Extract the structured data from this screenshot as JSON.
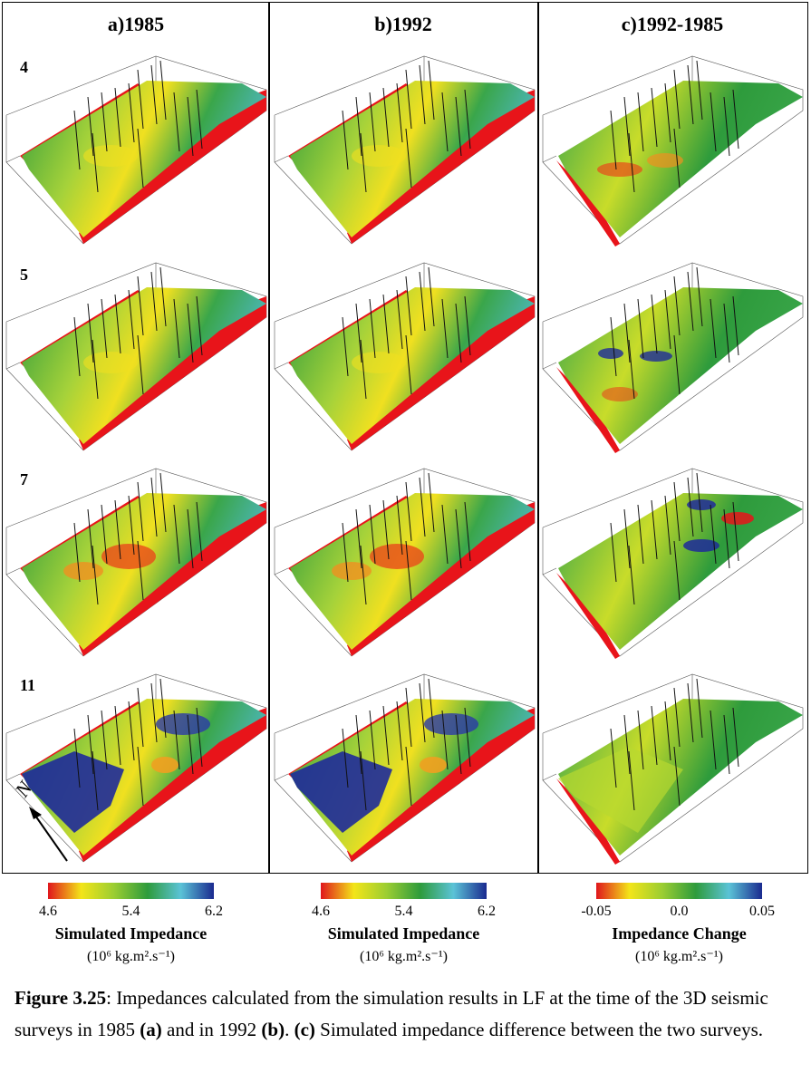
{
  "panels": [
    {
      "title": "a)1985",
      "colormap": "abs"
    },
    {
      "title": "b)1992",
      "colormap": "abs"
    },
    {
      "title": "c)1992-1985",
      "colormap": "diff"
    }
  ],
  "rows": [
    {
      "label": "4"
    },
    {
      "label": "5"
    },
    {
      "label": "7"
    },
    {
      "label": "11"
    }
  ],
  "north_label": "N",
  "colorbars": [
    {
      "title": "Simulated Impedance",
      "units": "(10⁶ kg.m².s⁻¹)",
      "ticks": [
        "4.6",
        "5.4",
        "6.2"
      ],
      "colors": [
        "#e0161c",
        "#f3e519",
        "#9acd32",
        "#2e9b3c",
        "#5bc3d7",
        "#1a2a8f"
      ]
    },
    {
      "title": "Simulated Impedance",
      "units": "(10⁶ kg.m².s⁻¹)",
      "ticks": [
        "4.6",
        "5.4",
        "6.2"
      ],
      "colors": [
        "#e0161c",
        "#f3e519",
        "#9acd32",
        "#2e9b3c",
        "#5bc3d7",
        "#1a2a8f"
      ]
    },
    {
      "title": "Impedance Change",
      "units": "(10⁶ kg.m².s⁻¹)",
      "ticks": [
        "-0.05",
        "0.0",
        "0.05"
      ],
      "colors": [
        "#e0161c",
        "#f3e519",
        "#9acd32",
        "#2e9b3c",
        "#5bc3d7",
        "#1a2a8f"
      ]
    }
  ],
  "caption": {
    "label": "Figure 3.25",
    "text_1": ": Impedances calculated from the simulation results in LF at the time of the 3D seismic surveys in 1985 ",
    "a": "(a)",
    "text_2": " and in 1992 ",
    "b": "(b)",
    "text_3": ". ",
    "c": "(c)",
    "text_4": " Simulated impedance difference between the two surveys."
  }
}
